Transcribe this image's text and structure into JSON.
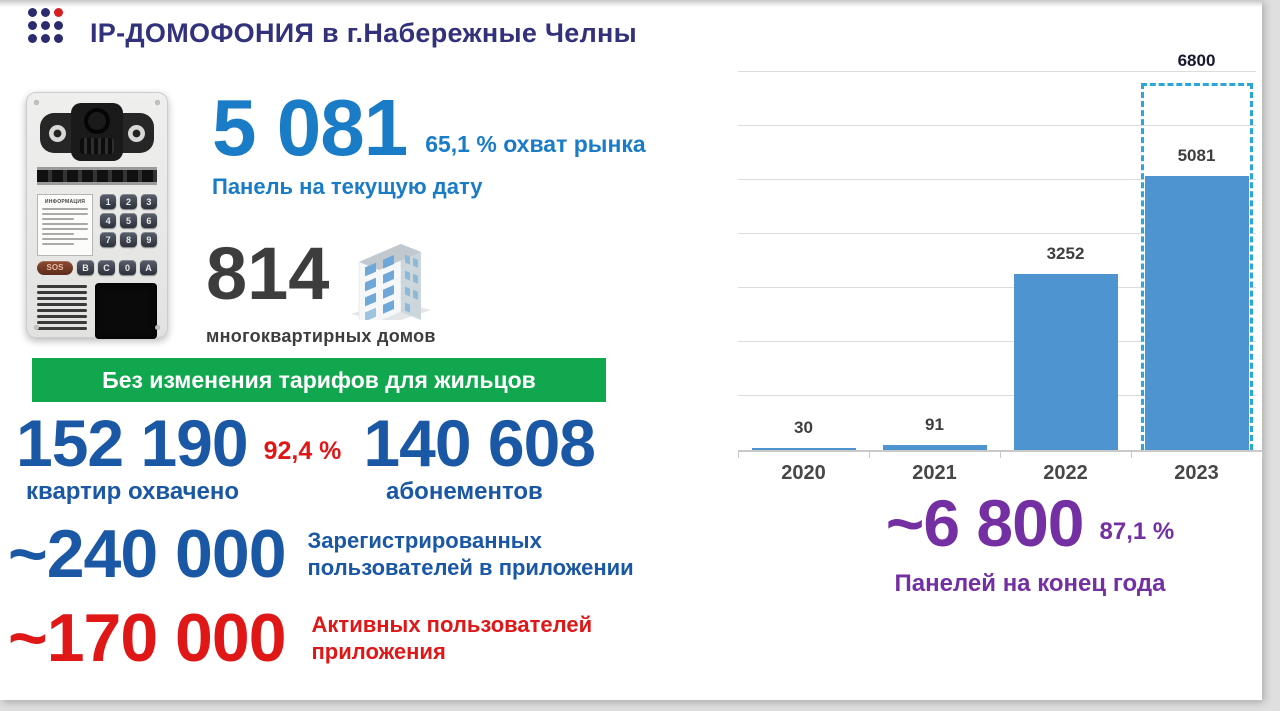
{
  "header": {
    "title": "IP-ДОМОФОНИЯ в г.Набережные Челны"
  },
  "panel_stat": {
    "value": "5 081",
    "pct": "65,1 % охват рынка",
    "label": "Панель на текущую дату"
  },
  "houses_stat": {
    "value": "814",
    "label": "многоквартирных домов"
  },
  "banner": {
    "text": "Без изменения тарифов для жильцов"
  },
  "apartments_stat": {
    "value": "152 190",
    "pct": "92,4 %",
    "label": "квартир охвачено"
  },
  "subscriptions_stat": {
    "value": "140 608",
    "label": "абонементов"
  },
  "registered_stat": {
    "value": "~240 000",
    "label": "Зарегистрированных пользователей в приложении"
  },
  "active_stat": {
    "value": "~170 000",
    "label": "Активных пользователей приложения"
  },
  "year_end_stat": {
    "value": "~6 800",
    "pct": "87,1 %",
    "label": "Панелей на конец года"
  },
  "intercom": {
    "sos_label": "SOS",
    "info_label": "ИНФОРМАЦИЯ",
    "keypad_digits": [
      "1",
      "2",
      "3",
      "4",
      "5",
      "6",
      "7",
      "8",
      "9"
    ],
    "keypad_bottom": [
      "В",
      "С",
      "0",
      "А"
    ]
  },
  "colors": {
    "title": "#32327c",
    "light_blue": "#1a7cc7",
    "navy": "#1a57a5",
    "red": "#e01717",
    "green": "#10a74e",
    "purple": "#7430a3",
    "gray_text": "#3d3d3d",
    "bar_fill": "#4e94d0",
    "forecast_dash": "#2aa6db"
  },
  "chart_data": {
    "type": "bar",
    "title": "",
    "xlabel": "",
    "ylabel": "",
    "categories": [
      "2020",
      "2021",
      "2022",
      "2023"
    ],
    "values": [
      30,
      91,
      3252,
      5081
    ],
    "bar_labels": [
      "30",
      "91",
      "3252",
      "5081"
    ],
    "forecast": {
      "category": "2023",
      "value": 6800,
      "label": "6800"
    },
    "ylim": [
      0,
      7300
    ],
    "gridline_step": 1000,
    "grid": true,
    "legend": "none",
    "bar_color": "#4e94d0",
    "forecast_border_color": "#2aa6db"
  }
}
